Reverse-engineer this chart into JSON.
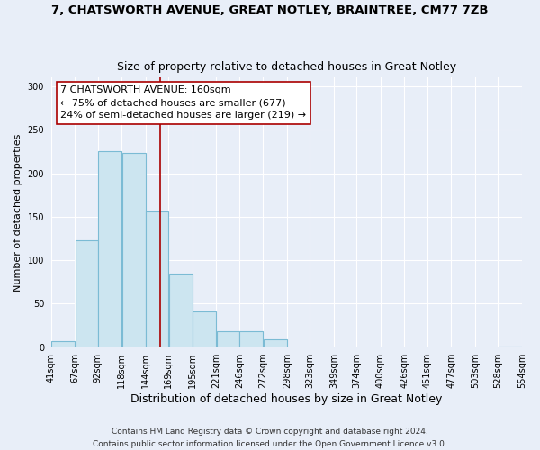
{
  "title": "7, CHATSWORTH AVENUE, GREAT NOTLEY, BRAINTREE, CM77 7ZB",
  "subtitle": "Size of property relative to detached houses in Great Notley",
  "xlabel": "Distribution of detached houses by size in Great Notley",
  "ylabel": "Number of detached properties",
  "bar_edges": [
    41,
    67,
    92,
    118,
    144,
    169,
    195,
    221,
    246,
    272,
    298,
    323,
    349,
    374,
    400,
    426,
    451,
    477,
    503,
    528,
    554
  ],
  "bar_heights": [
    7,
    123,
    225,
    223,
    156,
    85,
    41,
    18,
    18,
    9,
    0,
    0,
    0,
    0,
    0,
    0,
    0,
    0,
    0,
    1
  ],
  "bar_color": "#cce5f0",
  "bar_edge_color": "#7bbbd4",
  "vline_x": 160,
  "vline_color": "#aa0000",
  "annotation_line1": "7 CHATSWORTH AVENUE: 160sqm",
  "annotation_line2": "← 75% of detached houses are smaller (677)",
  "annotation_line3": "24% of semi-detached houses are larger (219) →",
  "annotation_box_facecolor": "#ffffff",
  "annotation_box_edgecolor": "#aa0000",
  "ylim": [
    0,
    310
  ],
  "yticks": [
    0,
    50,
    100,
    150,
    200,
    250,
    300
  ],
  "xlim": [
    41,
    554
  ],
  "xtick_labels": [
    "41sqm",
    "67sqm",
    "92sqm",
    "118sqm",
    "144sqm",
    "169sqm",
    "195sqm",
    "221sqm",
    "246sqm",
    "272sqm",
    "298sqm",
    "323sqm",
    "349sqm",
    "374sqm",
    "400sqm",
    "426sqm",
    "451sqm",
    "477sqm",
    "503sqm",
    "528sqm",
    "554sqm"
  ],
  "xtick_positions": [
    41,
    67,
    92,
    118,
    144,
    169,
    195,
    221,
    246,
    272,
    298,
    323,
    349,
    374,
    400,
    426,
    451,
    477,
    503,
    528,
    554
  ],
  "footer_text": "Contains HM Land Registry data © Crown copyright and database right 2024.\nContains public sector information licensed under the Open Government Licence v3.0.",
  "background_color": "#e8eef8",
  "grid_color": "#ffffff",
  "title_fontsize": 9.5,
  "subtitle_fontsize": 9,
  "xlabel_fontsize": 9,
  "ylabel_fontsize": 8,
  "tick_fontsize": 7,
  "annotation_fontsize": 8,
  "footer_fontsize": 6.5
}
